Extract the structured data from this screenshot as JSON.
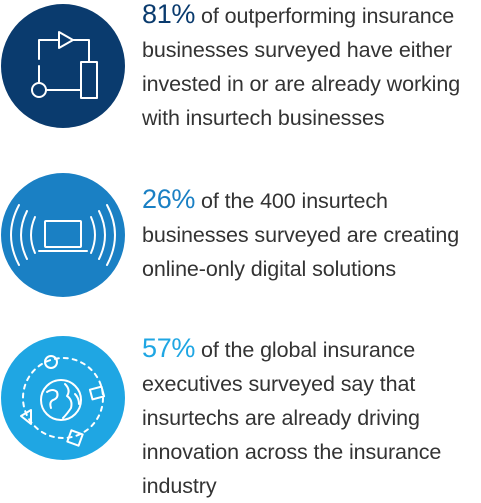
{
  "colors": {
    "text": "#333333",
    "stat1_circle": "#0a3b6e",
    "stat2_circle": "#1a80c4",
    "stat3_circle": "#1fa6e3",
    "stat1_percent": "#0a3b6e",
    "stat2_percent": "#1a80c4",
    "stat3_percent": "#1fa6e3"
  },
  "stats": [
    {
      "icon": "process-flow-icon",
      "percent": "81%",
      "lines": [
        " of outperforming insurance",
        "businesses surveyed have either",
        "invested in or are already working",
        "with insurtech businesses"
      ]
    },
    {
      "icon": "broadcasting-laptop-icon",
      "percent": "26%",
      "lines": [
        " of the 400 insurtech",
        "businesses surveyed are creating",
        "online-only digital solutions"
      ]
    },
    {
      "icon": "globe-network-icon",
      "percent": "57%",
      "lines": [
        " of the global insurance",
        "executives surveyed say that",
        "insurtechs are already driving",
        "innovation across the insurance",
        "industry"
      ]
    }
  ]
}
